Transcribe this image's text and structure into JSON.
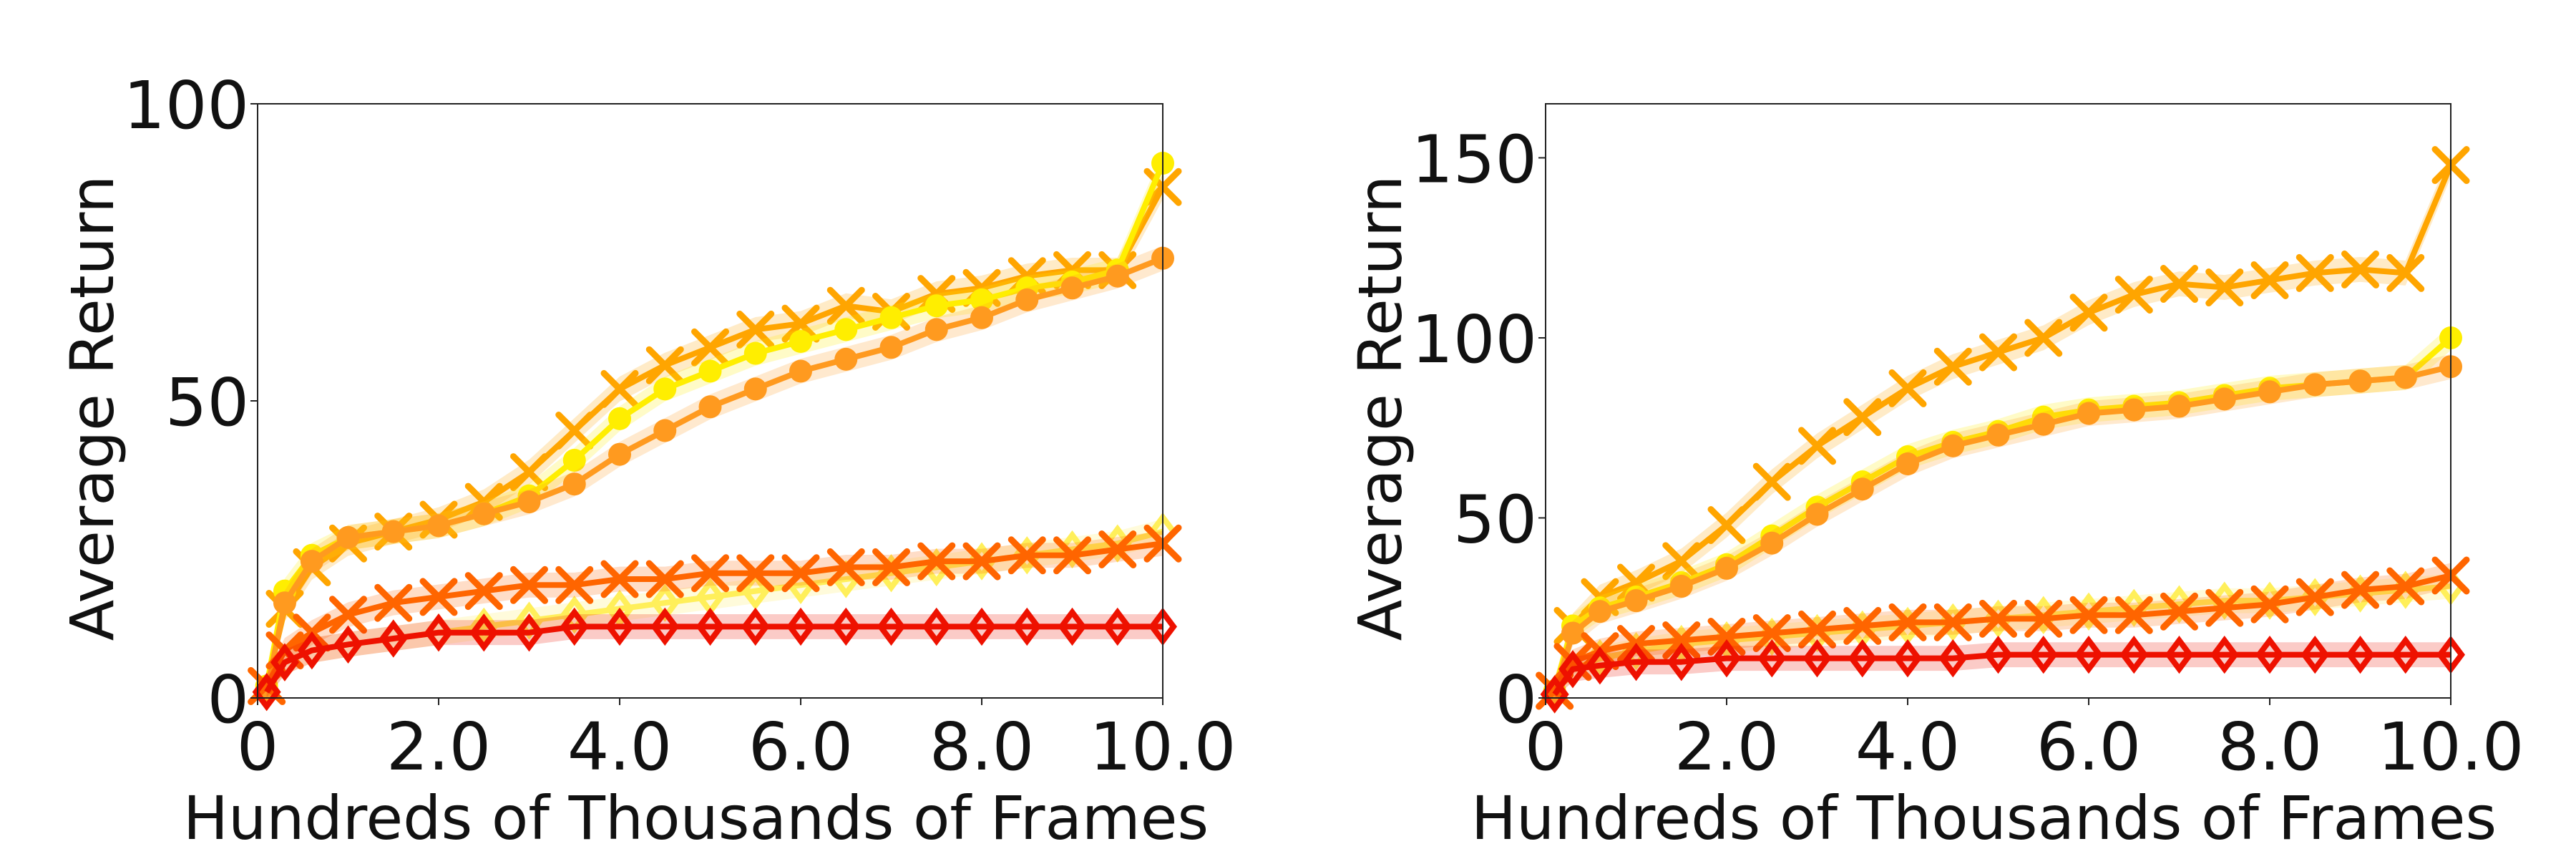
{
  "chart_data": [
    {
      "type": "line",
      "xlabel": "Hundreds of Thousands of Frames",
      "ylabel": "Average Return",
      "xlim": [
        0,
        10
      ],
      "ylim": [
        0,
        100
      ],
      "xticks": [
        "0",
        "2.0",
        "4.0",
        "6.0",
        "8.0",
        "10.0"
      ],
      "yticks": [
        "0",
        "50",
        "100"
      ],
      "grid": false,
      "legend": "none",
      "x": [
        0.1,
        0.3,
        0.6,
        1.0,
        1.5,
        2.0,
        2.5,
        3.0,
        3.5,
        4.0,
        4.5,
        5.0,
        5.5,
        6.0,
        6.5,
        7.0,
        7.5,
        8.0,
        8.5,
        9.0,
        9.5,
        10.0
      ],
      "series": [
        {
          "color": "#ffa500",
          "marker": "x",
          "values": [
            2,
            15,
            22,
            26,
            28,
            30,
            33,
            38,
            45,
            52,
            56,
            59,
            62,
            63,
            66,
            65,
            68,
            69,
            71,
            72,
            72,
            86
          ]
        },
        {
          "color": "#ffee00",
          "marker": "o",
          "values": [
            2,
            18,
            24,
            27,
            28,
            29,
            31,
            34,
            40,
            47,
            52,
            55,
            58,
            60,
            62,
            64,
            66,
            67,
            69,
            70,
            72,
            90
          ]
        },
        {
          "color": "#ff9a1f",
          "marker": "o",
          "values": [
            1,
            16,
            23,
            27,
            28,
            29,
            31,
            33,
            36,
            41,
            45,
            49,
            52,
            55,
            57,
            59,
            62,
            64,
            67,
            69,
            71,
            74
          ]
        },
        {
          "color": "#ffef5a",
          "marker": "D",
          "values": [
            1,
            6,
            8,
            9,
            10,
            11,
            12,
            13,
            14,
            15,
            16,
            17,
            18,
            19,
            20,
            21,
            22,
            23,
            24,
            25,
            26,
            28
          ]
        },
        {
          "color": "#ff6500",
          "marker": "x",
          "values": [
            2,
            8,
            11,
            14,
            16,
            17,
            18,
            19,
            19,
            20,
            20,
            21,
            21,
            21,
            22,
            22,
            23,
            23,
            24,
            24,
            25,
            26
          ]
        },
        {
          "color": "#ee1100",
          "marker": "D",
          "values": [
            1,
            6,
            8,
            9,
            10,
            11,
            11,
            11,
            12,
            12,
            12,
            12,
            12,
            12,
            12,
            12,
            12,
            12,
            12,
            12,
            12,
            12
          ]
        }
      ]
    },
    {
      "type": "line",
      "xlabel": "Hundreds of Thousands of Frames",
      "ylabel": "Average Return",
      "xlim": [
        0,
        10
      ],
      "ylim": [
        0,
        165
      ],
      "xticks": [
        "0",
        "2.0",
        "4.0",
        "6.0",
        "8.0",
        "10.0"
      ],
      "yticks": [
        "0",
        "50",
        "100",
        "150"
      ],
      "grid": false,
      "legend": "none",
      "x": [
        0.1,
        0.3,
        0.6,
        1.0,
        1.5,
        2.0,
        2.5,
        3.0,
        3.5,
        4.0,
        4.5,
        5.0,
        5.5,
        6.0,
        6.5,
        7.0,
        7.5,
        8.0,
        8.5,
        9.0,
        9.5,
        10.0
      ],
      "series": [
        {
          "color": "#ffa500",
          "marker": "x",
          "values": [
            2,
            20,
            28,
            32,
            38,
            48,
            60,
            70,
            78,
            86,
            92,
            96,
            100,
            107,
            112,
            115,
            114,
            116,
            118,
            119,
            118,
            148
          ]
        },
        {
          "color": "#ffee00",
          "marker": "o",
          "values": [
            2,
            20,
            25,
            28,
            32,
            37,
            45,
            53,
            60,
            67,
            71,
            74,
            78,
            80,
            81,
            82,
            84,
            86,
            87,
            88,
            89,
            100
          ]
        },
        {
          "color": "#ff9a1f",
          "marker": "o",
          "values": [
            1,
            18,
            24,
            27,
            31,
            36,
            43,
            51,
            58,
            65,
            70,
            73,
            76,
            79,
            80,
            81,
            83,
            85,
            87,
            88,
            89,
            92
          ]
        },
        {
          "color": "#ffef5a",
          "marker": "D",
          "values": [
            1,
            8,
            11,
            13,
            15,
            16,
            17,
            18,
            19,
            20,
            21,
            22,
            23,
            24,
            25,
            26,
            27,
            27,
            28,
            29,
            30,
            31
          ]
        },
        {
          "color": "#ff6500",
          "marker": "x",
          "values": [
            2,
            10,
            13,
            15,
            16,
            17,
            18,
            19,
            20,
            21,
            21,
            22,
            22,
            23,
            23,
            24,
            25,
            26,
            28,
            30,
            31,
            34
          ]
        },
        {
          "color": "#ee1100",
          "marker": "D",
          "values": [
            1,
            8,
            9,
            10,
            10,
            11,
            11,
            11,
            11,
            11,
            11,
            12,
            12,
            12,
            12,
            12,
            12,
            12,
            12,
            12,
            12,
            12
          ]
        }
      ]
    }
  ]
}
